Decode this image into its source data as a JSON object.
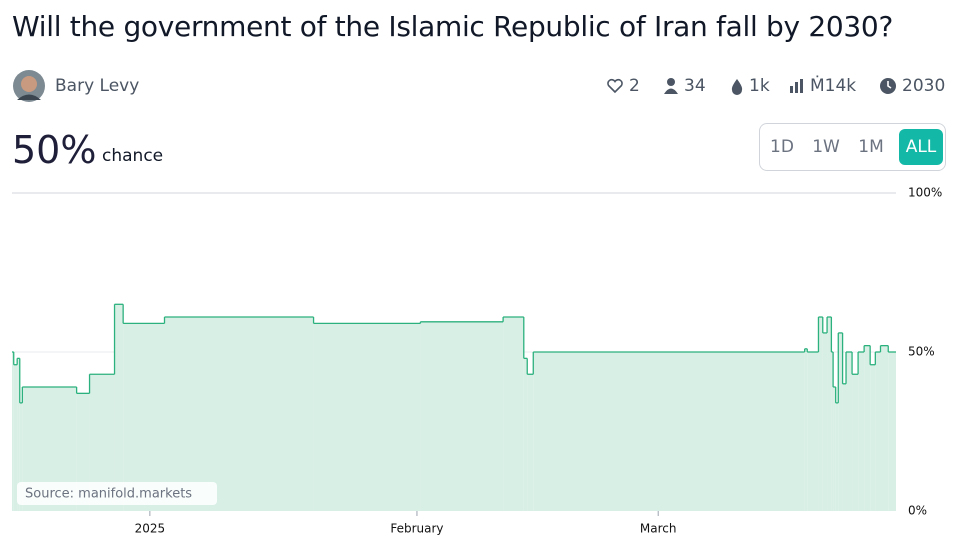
{
  "header": {
    "title": "Will the government of the Islamic Republic of Iran fall by 2030?",
    "author": "Bary Levy",
    "stats": {
      "likes": "2",
      "traders": "34",
      "liquidity": "1k",
      "volume": "Ṁ14k",
      "close": "2030"
    }
  },
  "probability": {
    "value": "50%",
    "label": "chance"
  },
  "range_buttons": [
    "1D",
    "1W",
    "1M",
    "ALL"
  ],
  "chart_data": {
    "type": "step",
    "color": "#2bb17d",
    "area_color": "#d8efe5",
    "x": [
      -16.0,
      -15.8,
      -15.4,
      -15.1,
      -14.8,
      -8.5,
      -7.0,
      -4.1,
      -3.1,
      1.7,
      19.0,
      31.4,
      41.0,
      43.4,
      43.8,
      44.5,
      76.0,
      76.3,
      77.6,
      78.1,
      78.6,
      79.1,
      79.3,
      79.6,
      79.9,
      80.4,
      80.8,
      81.5,
      82.2,
      82.9,
      83.6,
      84.2,
      84.8,
      85.7
    ],
    "values": [
      50,
      46,
      48,
      34,
      39,
      37,
      43,
      65,
      59,
      61,
      59,
      59.5,
      61,
      48,
      43,
      50,
      51,
      50,
      61,
      56,
      61,
      50,
      39,
      34,
      56,
      40,
      50,
      43,
      50,
      52,
      46,
      50,
      52,
      50
    ],
    "xlim": [
      -16.0,
      86.6
    ],
    "xticks": [
      {
        "value": 0,
        "label": "2025"
      },
      {
        "value": 31,
        "label": "February"
      },
      {
        "value": 59,
        "label": "March"
      }
    ],
    "ylim": [
      0,
      100
    ],
    "yticks": [
      {
        "value": 0,
        "label": "0%"
      },
      {
        "value": 50,
        "label": "50%"
      },
      {
        "value": 100,
        "label": "100%"
      }
    ],
    "annotation": "Source: manifold.markets"
  }
}
